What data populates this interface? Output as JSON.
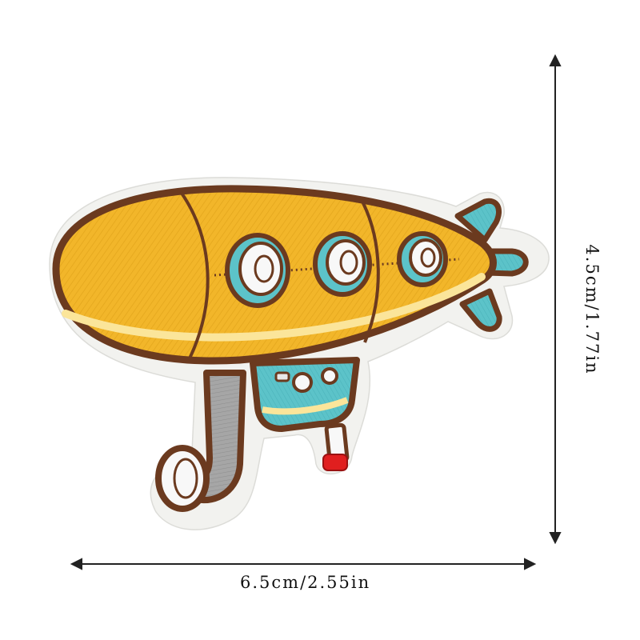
{
  "product": {
    "name": "Airship embroidered patch"
  },
  "dimensions": {
    "width_label": "6.5cm/2.55in",
    "height_label": "4.5cm/1.77in"
  },
  "colors": {
    "background": "#ffffff",
    "felt_backing": "#f2f2ef",
    "outline_brown": "#6b3a1f",
    "balloon_yellow": "#f2b62a",
    "balloon_highlight": "#fbe59a",
    "fin_teal": "#5cc3c9",
    "window_white": "#f8f8f8",
    "periscope_gray": "#9a9a9a",
    "tip_red": "#e01f1f",
    "dimension_line": "#222222"
  }
}
